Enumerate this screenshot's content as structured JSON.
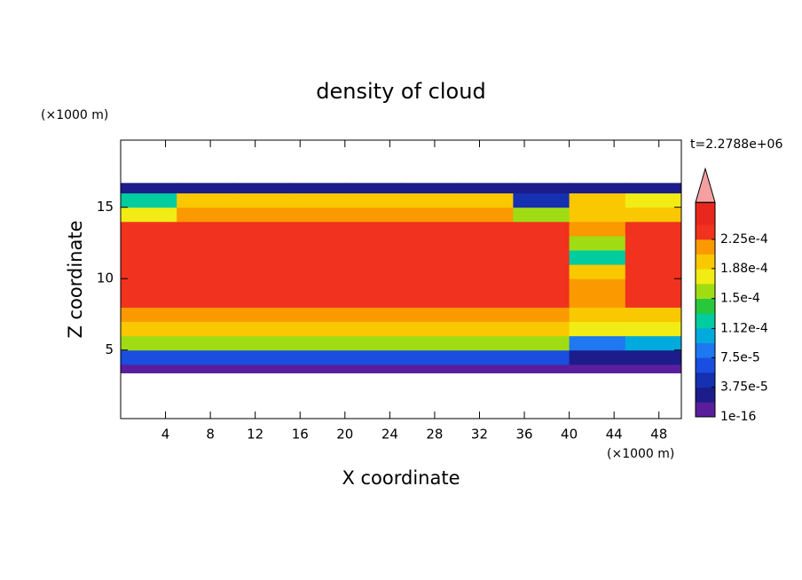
{
  "chart_data": {
    "type": "contour",
    "title": "density of cloud",
    "x_label": "X coordinate",
    "y_label": "Z coordinate",
    "x_unit": "(×1000 m)",
    "y_unit": "(×1000 m)",
    "time_label": "t=2.2788e+06",
    "xlim": [
      0,
      50
    ],
    "ylim": [
      0.2,
      19.7
    ],
    "xticks": [
      4,
      8,
      12,
      16,
      20,
      24,
      28,
      32,
      36,
      40,
      44,
      48
    ],
    "yticks": [
      5,
      10,
      15
    ],
    "x_edges": [
      0,
      5,
      10,
      15,
      20,
      25,
      30,
      35,
      40,
      45,
      50
    ],
    "z_edges": [
      3.4,
      4,
      5,
      6,
      7,
      8,
      9,
      10,
      11,
      12,
      13,
      14,
      15,
      16,
      16.7
    ],
    "field": [
      [
        1e-05,
        1e-05,
        1e-05,
        1e-05,
        1e-05,
        1e-05,
        1e-05,
        1e-05,
        1e-05,
        1e-05
      ],
      [
        7e-05,
        7e-05,
        7e-05,
        7e-05,
        7e-05,
        7e-05,
        7e-05,
        7e-05,
        3e-05,
        3e-05
      ],
      [
        0.00015,
        0.00015,
        0.00015,
        0.00015,
        0.00015,
        0.00015,
        0.00015,
        0.00015,
        9e-05,
        0.0001
      ],
      [
        0.00019,
        0.00019,
        0.00019,
        0.00019,
        0.00019,
        0.00019,
        0.00019,
        0.00019,
        0.00017,
        0.00017
      ],
      [
        0.00021,
        0.00021,
        0.00021,
        0.00021,
        0.00021,
        0.00021,
        0.00021,
        0.00021,
        0.0002,
        0.0002
      ],
      [
        0.00023,
        0.00023,
        0.00023,
        0.00023,
        0.00023,
        0.00023,
        0.00023,
        0.00023,
        0.00022,
        0.00023
      ],
      [
        0.000235,
        0.000235,
        0.000235,
        0.000235,
        0.000235,
        0.000235,
        0.000235,
        0.000235,
        0.00022,
        0.000235
      ],
      [
        0.000235,
        0.000235,
        0.000235,
        0.000235,
        0.000235,
        0.000235,
        0.000235,
        0.000235,
        0.00019,
        0.000235
      ],
      [
        0.000235,
        0.000235,
        0.000235,
        0.000235,
        0.000235,
        0.000235,
        0.000235,
        0.000235,
        0.00013,
        0.000235
      ],
      [
        0.000235,
        0.000235,
        0.000235,
        0.000235,
        0.000235,
        0.000235,
        0.000235,
        0.000235,
        0.00016,
        0.000235
      ],
      [
        0.000225,
        0.00023,
        0.00023,
        0.00023,
        0.00023,
        0.00023,
        0.00023,
        0.00023,
        0.00021,
        0.00023
      ],
      [
        0.00018,
        0.00022,
        0.00022,
        0.00022,
        0.00022,
        0.00022,
        0.00022,
        0.00016,
        0.0002,
        0.0002
      ],
      [
        0.00012,
        0.0002,
        0.0002,
        0.0002,
        0.0002,
        0.0002,
        0.00019,
        5e-05,
        0.00019,
        0.00018
      ],
      [
        2e-05,
        2e-05,
        2e-05,
        2e-05,
        2e-05,
        2e-05,
        2e-05,
        2e-05,
        2e-05,
        2e-05
      ]
    ],
    "levels": [
      1e-16,
      1.875e-05,
      3.75e-05,
      5.625e-05,
      7.5e-05,
      9.375e-05,
      0.0001125,
      0.00013125,
      0.00015,
      0.00016875,
      0.0001875,
      0.00020625,
      0.000225,
      0.00024375
    ],
    "colors": [
      "#5a1e9c",
      "#1c1c8a",
      "#1530b0",
      "#1a4ee0",
      "#1e78f0",
      "#00aadc",
      "#00cca0",
      "#28c83c",
      "#a0dc14",
      "#f0ec14",
      "#fac800",
      "#fa9a00",
      "#f0321e",
      "#e8281e"
    ],
    "over_color": "#f4a0a0",
    "colorbar_ticks": [
      {
        "value": 1e-16,
        "label": "1e-16"
      },
      {
        "value": 3.75e-05,
        "label": "3.75e-5"
      },
      {
        "value": 7.5e-05,
        "label": "7.5e-5"
      },
      {
        "value": 0.000112,
        "label": "1.12e-4"
      },
      {
        "value": 0.00015,
        "label": "1.5e-4"
      },
      {
        "value": 0.000188,
        "label": "1.88e-4"
      },
      {
        "value": 0.000225,
        "label": "2.25e-4"
      }
    ]
  }
}
